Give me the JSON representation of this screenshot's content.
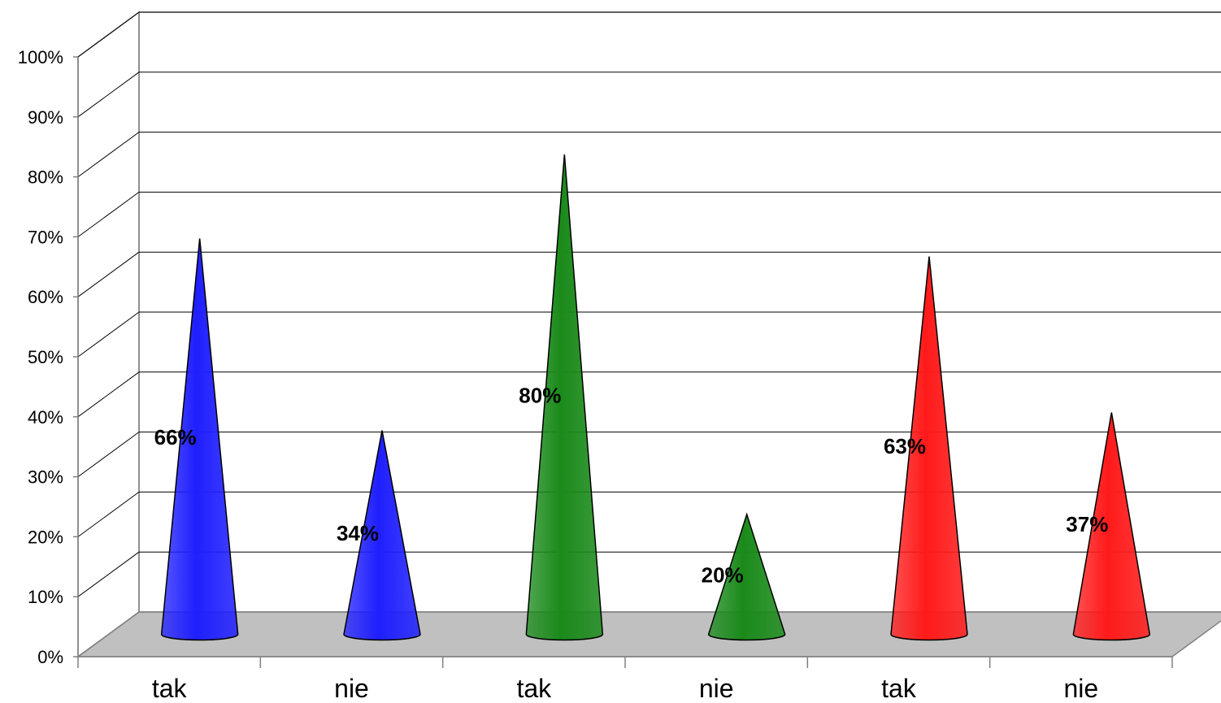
{
  "chart_data": {
    "type": "bar",
    "style": "3d-cone",
    "categories": [
      "tak",
      "nie",
      "tak",
      "nie",
      "tak",
      "nie"
    ],
    "values": [
      66,
      34,
      80,
      20,
      63,
      37
    ],
    "data_labels": [
      "66%",
      "34%",
      "80%",
      "20%",
      "63%",
      "37%"
    ],
    "colors": [
      "#1f1fff",
      "#1f1fff",
      "#1a8a1a",
      "#1a8a1a",
      "#ff1a1a",
      "#ff1a1a"
    ],
    "y_ticks": [
      "0%",
      "10%",
      "20%",
      "30%",
      "40%",
      "50%",
      "60%",
      "70%",
      "80%",
      "90%",
      "100%"
    ],
    "ylim": [
      0,
      100
    ],
    "grid": true,
    "legend": "none",
    "floor_color": "#c0c0c0"
  }
}
